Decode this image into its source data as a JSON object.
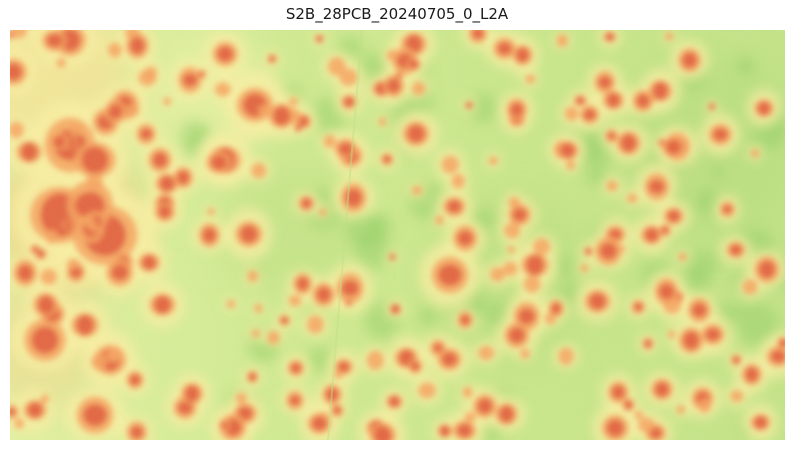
{
  "figure": {
    "title": "S2B_28PCB_20240705_0_L2A"
  },
  "image": {
    "description_icon": "satellite-scene",
    "colormap": [
      "#1a9850",
      "#91cf60",
      "#d9ef8b",
      "#fee08b",
      "#fc8d59",
      "#d73027"
    ]
  }
}
